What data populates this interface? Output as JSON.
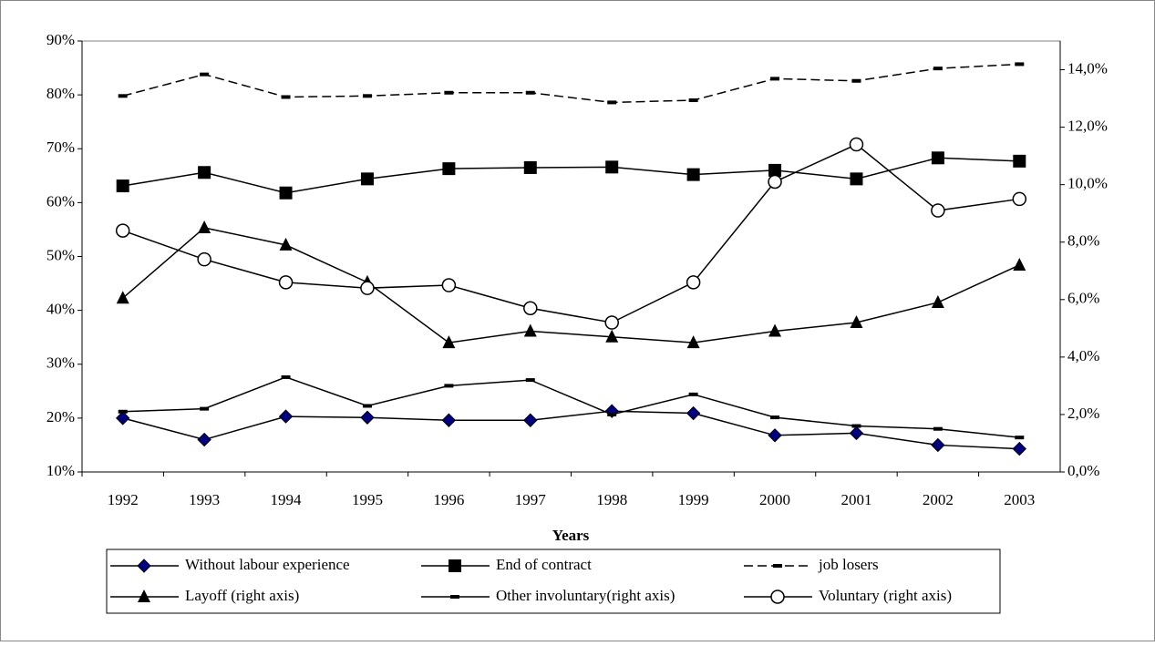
{
  "chart_data": {
    "type": "line",
    "x_label": "Years",
    "categories": [
      "1992",
      "1993",
      "1994",
      "1995",
      "1996",
      "1997",
      "1998",
      "1999",
      "2000",
      "2001",
      "2002",
      "2003"
    ],
    "ylim": [
      10,
      90
    ],
    "yticks": [
      {
        "value": 10,
        "label": "10%"
      },
      {
        "value": 20,
        "label": "20%"
      },
      {
        "value": 30,
        "label": "30%"
      },
      {
        "value": 40,
        "label": "40%"
      },
      {
        "value": 50,
        "label": "50%"
      },
      {
        "value": 60,
        "label": "60%"
      },
      {
        "value": 70,
        "label": "70%"
      },
      {
        "value": 80,
        "label": "80%"
      },
      {
        "value": 90,
        "label": "90%"
      }
    ],
    "y2lim": [
      0,
      15
    ],
    "y2ticks": [
      {
        "value": 0,
        "label": "0,0%"
      },
      {
        "value": 2,
        "label": "2,0%"
      },
      {
        "value": 4,
        "label": "4,0%"
      },
      {
        "value": 6,
        "label": "6,0%"
      },
      {
        "value": 8,
        "label": "8,0%"
      },
      {
        "value": 10,
        "label": "10,0%"
      },
      {
        "value": 12,
        "label": "12,0%"
      },
      {
        "value": 14,
        "label": "14,0%"
      }
    ],
    "grid": false,
    "legend": "bottom",
    "series": [
      {
        "name": "Without labour experience",
        "color": "#000080",
        "marker": "diamond",
        "dashed": false,
        "values": [
          20,
          16,
          20.3,
          20.1,
          19.6,
          19.6,
          21.3,
          20.9,
          16.8,
          17.2,
          15,
          14.3
        ]
      },
      {
        "name": "End of contract",
        "color": "#000000",
        "marker": "square",
        "dashed": false,
        "values": [
          63.1,
          65.6,
          61.8,
          64.4,
          66.3,
          66.5,
          66.6,
          65.2,
          66,
          64.4,
          68.3,
          67.7
        ]
      },
      {
        "name": "job losers",
        "color": "#000000",
        "marker": "dash",
        "dashed": true,
        "values": [
          79.8,
          83.8,
          79.6,
          79.8,
          80.4,
          80.4,
          78.6,
          79,
          83,
          82.6,
          84.9,
          85.7
        ]
      },
      {
        "name": "Layoff (right axis)",
        "color": "#000000",
        "marker": "triangle",
        "dashed": false,
        "axis": "y2",
        "values": [
          6.05,
          8.5,
          7.9,
          6.6,
          4.5,
          4.9,
          4.7,
          4.5,
          4.9,
          5.2,
          5.9,
          7.2
        ]
      },
      {
        "name": "Other involuntary(right axis)",
        "color": "#000000",
        "marker": "dash",
        "dashed": false,
        "axis": "y2",
        "values": [
          2.1,
          2.2,
          3.3,
          2.3,
          3.0,
          3.2,
          2.0,
          2.7,
          1.9,
          1.6,
          1.5,
          1.2
        ]
      },
      {
        "name": "Voluntary (right axis)",
        "color": "#000000",
        "marker": "circle",
        "dashed": false,
        "axis": "y2",
        "values": [
          8.4,
          7.4,
          6.6,
          6.4,
          6.5,
          5.7,
          5.2,
          6.6,
          10.1,
          11.4,
          9.1,
          9.5
        ]
      }
    ]
  }
}
